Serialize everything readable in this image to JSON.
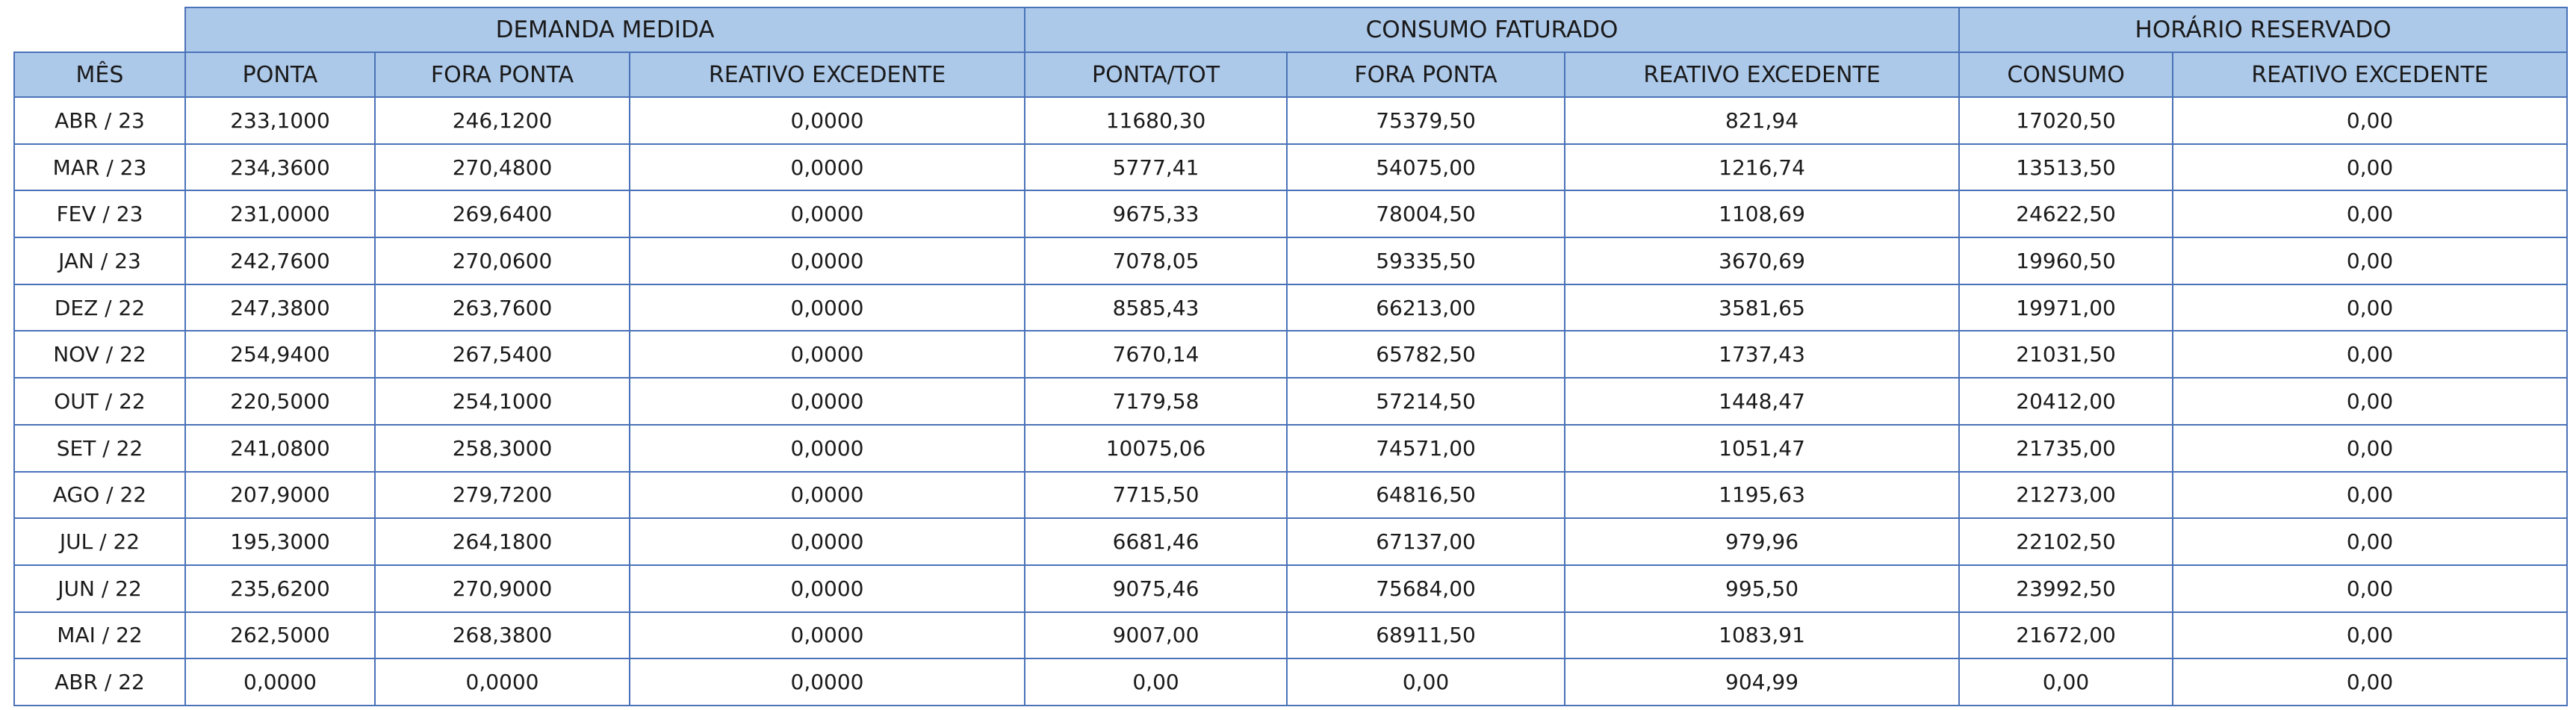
{
  "groups": {
    "demanda": "DEMANDA MEDIDA",
    "consumo": "CONSUMO FATURADO",
    "horario": "HORÁRIO RESERVADO"
  },
  "columns": {
    "mes": "MÊS",
    "dm_ponta": "PONTA",
    "dm_fora_ponta": "FORA PONTA",
    "dm_reativo": "REATIVO EXCEDENTE",
    "cf_ponta_tot": "PONTA/TOT",
    "cf_fora_ponta": "FORA PONTA",
    "cf_reativo": "REATIVO EXCEDENTE",
    "hr_consumo": "CONSUMO",
    "hr_reativo": "REATIVO EXCEDENTE"
  },
  "rows": [
    [
      "ABR / 23",
      "233,1000",
      "246,1200",
      "0,0000",
      "11680,30",
      "75379,50",
      "821,94",
      "17020,50",
      "0,00"
    ],
    [
      "MAR / 23",
      "234,3600",
      "270,4800",
      "0,0000",
      "5777,41",
      "54075,00",
      "1216,74",
      "13513,50",
      "0,00"
    ],
    [
      "FEV / 23",
      "231,0000",
      "269,6400",
      "0,0000",
      "9675,33",
      "78004,50",
      "1108,69",
      "24622,50",
      "0,00"
    ],
    [
      "JAN / 23",
      "242,7600",
      "270,0600",
      "0,0000",
      "7078,05",
      "59335,50",
      "3670,69",
      "19960,50",
      "0,00"
    ],
    [
      "DEZ / 22",
      "247,3800",
      "263,7600",
      "0,0000",
      "8585,43",
      "66213,00",
      "3581,65",
      "19971,00",
      "0,00"
    ],
    [
      "NOV / 22",
      "254,9400",
      "267,5400",
      "0,0000",
      "7670,14",
      "65782,50",
      "1737,43",
      "21031,50",
      "0,00"
    ],
    [
      "OUT / 22",
      "220,5000",
      "254,1000",
      "0,0000",
      "7179,58",
      "57214,50",
      "1448,47",
      "20412,00",
      "0,00"
    ],
    [
      "SET / 22",
      "241,0800",
      "258,3000",
      "0,0000",
      "10075,06",
      "74571,00",
      "1051,47",
      "21735,00",
      "0,00"
    ],
    [
      "AGO / 22",
      "207,9000",
      "279,7200",
      "0,0000",
      "7715,50",
      "64816,50",
      "1195,63",
      "21273,00",
      "0,00"
    ],
    [
      "JUL / 22",
      "195,3000",
      "264,1800",
      "0,0000",
      "6681,46",
      "67137,00",
      "979,96",
      "22102,50",
      "0,00"
    ],
    [
      "JUN / 22",
      "235,6200",
      "270,9000",
      "0,0000",
      "9075,46",
      "75684,00",
      "995,50",
      "23992,50",
      "0,00"
    ],
    [
      "MAI / 22",
      "262,5000",
      "268,3800",
      "0,0000",
      "9007,00",
      "68911,50",
      "1083,91",
      "21672,00",
      "0,00"
    ],
    [
      "ABR / 22",
      "0,0000",
      "0,0000",
      "0,0000",
      "0,00",
      "0,00",
      "904,99",
      "0,00",
      "0,00"
    ]
  ]
}
